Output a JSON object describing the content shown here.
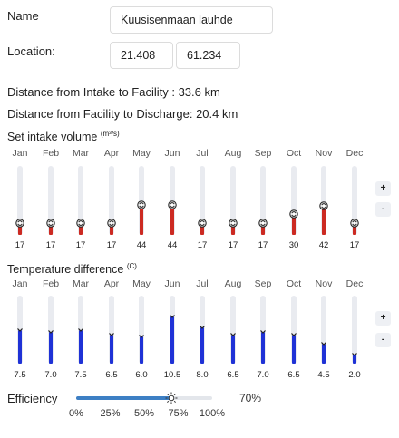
{
  "name_label": "Name",
  "name_value": "Kuusisenmaan lauhde",
  "location_label": "Location:",
  "location_lat": "21.408",
  "location_lon": "61.234",
  "distance_intake": "Distance from Intake to Facility : 33.6 km",
  "distance_discharge": "Distance from Facility to Discharge: 20.4 km",
  "intake": {
    "title": "Set intake volume",
    "unit": "(m³/s)",
    "max": 100,
    "months": [
      "Jan",
      "Feb",
      "Mar",
      "Apr",
      "May",
      "Jun",
      "Jul",
      "Aug",
      "Sep",
      "Oct",
      "Nov",
      "Dec"
    ],
    "values": [
      "17",
      "17",
      "17",
      "17",
      "44",
      "44",
      "17",
      "17",
      "17",
      "30",
      "42",
      "17"
    ],
    "plus": "+",
    "minus": "-",
    "color": "#cc2a22"
  },
  "temp": {
    "title": "Temperature difference",
    "unit": "(C)",
    "max": 15,
    "months": [
      "Jan",
      "Feb",
      "Mar",
      "Apr",
      "May",
      "Jun",
      "Jul",
      "Aug",
      "Sep",
      "Oct",
      "Nov",
      "Dec"
    ],
    "values": [
      "7.5",
      "7.0",
      "7.5",
      "6.5",
      "6.0",
      "10.5",
      "8.0",
      "6.5",
      "7.0",
      "6.5",
      "4.5",
      "2.0"
    ],
    "plus": "+",
    "minus": "-",
    "color": "#1f32d6"
  },
  "efficiency": {
    "label": "Efficiency",
    "value_text": "70%",
    "value": 0.7,
    "ticks": [
      "0%",
      "25%",
      "50%",
      "75%",
      "100%"
    ],
    "color": "#3d7fc4"
  }
}
